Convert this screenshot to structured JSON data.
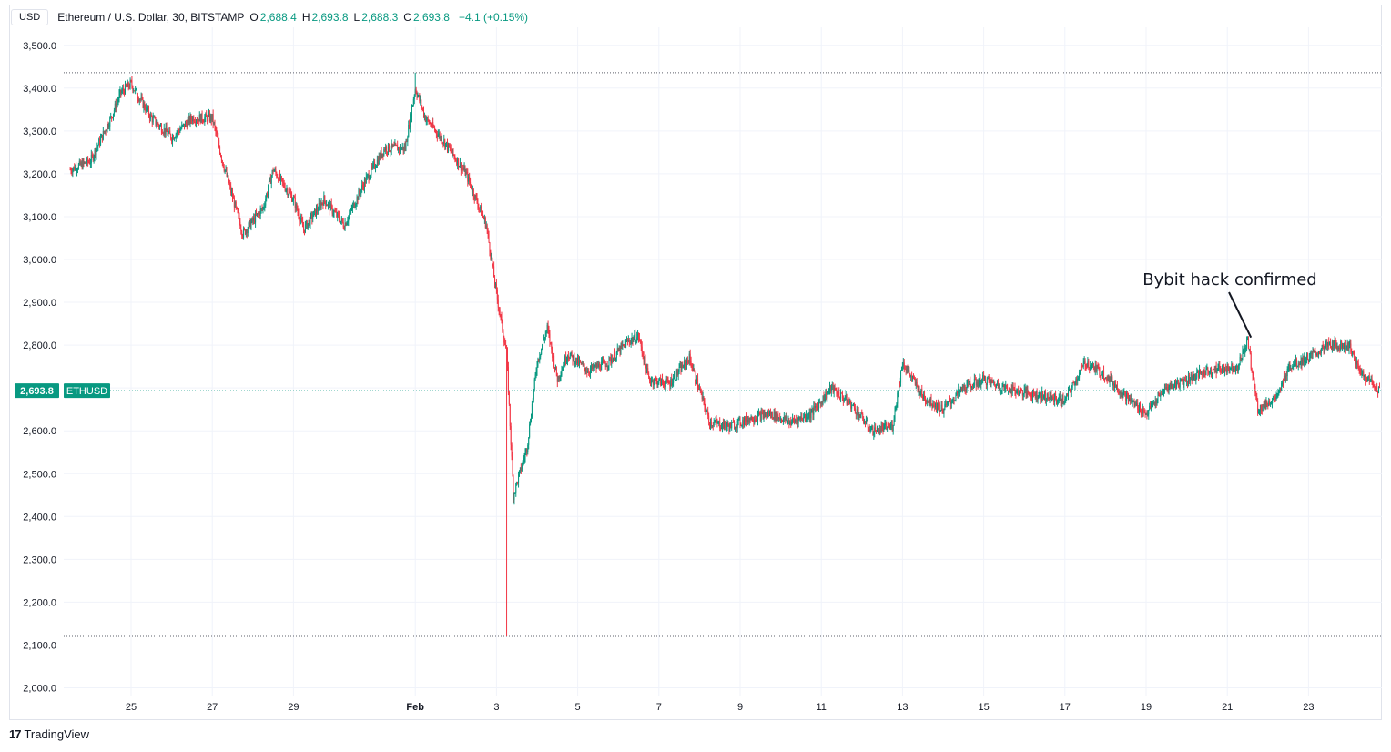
{
  "header": {
    "currency_button": "USD",
    "symbol": "Ethereum / U.S. Dollar, 30, BITSTAMP",
    "o_label": "O",
    "o_value": "2,688.4",
    "h_label": "H",
    "h_value": "2,693.8",
    "l_label": "L",
    "l_value": "2,688.3",
    "c_label": "C",
    "c_value": "2,693.8",
    "change": "+4.1 (+0.15%)"
  },
  "footer": {
    "brand_logo": "17",
    "brand_name": "TradingView"
  },
  "colors": {
    "up": "#089981",
    "down": "#f23645",
    "grid": "#f0f3fa",
    "axis_text": "#131722"
  },
  "chart_data": {
    "type": "candlestick",
    "title": "Ethereum / U.S. Dollar, 30, BITSTAMP",
    "grid": true,
    "y_axis": {
      "range": [
        1960,
        3560
      ],
      "ticks": [
        2000,
        2100,
        2200,
        2300,
        2400,
        2500,
        2600,
        2700,
        2800,
        2900,
        3000,
        3100,
        3200,
        3300,
        3400,
        3500
      ],
      "tick_labels": [
        "2,000.0",
        "2,100.0",
        "2,200.0",
        "2,300.0",
        "2,400.0",
        "2,500.0",
        "2,600.0",
        "2,700.0",
        "2,800.0",
        "2,900.0",
        "3,000.0",
        "3,100.0",
        "3,200.0",
        "3,300.0",
        "3,400.0",
        "3,500.0"
      ]
    },
    "x_axis": {
      "range_days": [
        "2025-01-23T12:00",
        "2025-02-24T18:00"
      ],
      "ticks": [
        {
          "date": "2025-01-25",
          "label": "25"
        },
        {
          "date": "2025-01-27",
          "label": "27"
        },
        {
          "date": "2025-01-29",
          "label": "29"
        },
        {
          "date": "2025-02-01",
          "label": "Feb"
        },
        {
          "date": "2025-02-03",
          "label": "3"
        },
        {
          "date": "2025-02-05",
          "label": "5"
        },
        {
          "date": "2025-02-07",
          "label": "7"
        },
        {
          "date": "2025-02-09",
          "label": "9"
        },
        {
          "date": "2025-02-11",
          "label": "11"
        },
        {
          "date": "2025-02-13",
          "label": "13"
        },
        {
          "date": "2025-02-15",
          "label": "15"
        },
        {
          "date": "2025-02-17",
          "label": "17"
        },
        {
          "date": "2025-02-19",
          "label": "19"
        },
        {
          "date": "2025-02-21",
          "label": "21"
        },
        {
          "date": "2025-02-23",
          "label": "23"
        }
      ]
    },
    "price_path": [
      [
        "2025-01-23T12:00",
        3210
      ],
      [
        "2025-01-24T00:00",
        3230
      ],
      [
        "2025-01-24T12:00",
        3330
      ],
      [
        "2025-01-24T18:00",
        3390
      ],
      [
        "2025-01-25T00:00",
        3410
      ],
      [
        "2025-01-25T12:00",
        3330
      ],
      [
        "2025-01-26T00:00",
        3285
      ],
      [
        "2025-01-26T12:00",
        3330
      ],
      [
        "2025-01-27T00:00",
        3330
      ],
      [
        "2025-01-27T06:00",
        3230
      ],
      [
        "2025-01-27T18:00",
        3060
      ],
      [
        "2025-01-28T06:00",
        3120
      ],
      [
        "2025-01-28T12:00",
        3210
      ],
      [
        "2025-01-29T00:00",
        3140
      ],
      [
        "2025-01-29T06:00",
        3070
      ],
      [
        "2025-01-29T18:00",
        3140
      ],
      [
        "2025-01-30T06:00",
        3080
      ],
      [
        "2025-01-30T18:00",
        3180
      ],
      [
        "2025-01-31T06:00",
        3260
      ],
      [
        "2025-01-31T18:00",
        3260
      ],
      [
        "2025-02-01T00:00",
        3400
      ],
      [
        "2025-02-01T06:00",
        3330
      ],
      [
        "2025-02-01T18:00",
        3270
      ],
      [
        "2025-02-02T06:00",
        3200
      ],
      [
        "2025-02-02T18:00",
        3080
      ],
      [
        "2025-02-03T00:00",
        2920
      ],
      [
        "2025-02-03T06:00",
        2780
      ],
      [
        "2025-02-03T10:00",
        2450
      ],
      [
        "2025-02-03T18:00",
        2560
      ],
      [
        "2025-02-04T00:00",
        2760
      ],
      [
        "2025-02-04T06:00",
        2840
      ],
      [
        "2025-02-04T12:00",
        2720
      ],
      [
        "2025-02-04T18:00",
        2780
      ],
      [
        "2025-02-05T06:00",
        2740
      ],
      [
        "2025-02-05T18:00",
        2760
      ],
      [
        "2025-02-06T06:00",
        2810
      ],
      [
        "2025-02-06T12:00",
        2820
      ],
      [
        "2025-02-06T18:00",
        2720
      ],
      [
        "2025-02-07T06:00",
        2710
      ],
      [
        "2025-02-07T18:00",
        2770
      ],
      [
        "2025-02-08T06:00",
        2620
      ],
      [
        "2025-02-08T18:00",
        2610
      ],
      [
        "2025-02-09T06:00",
        2630
      ],
      [
        "2025-02-09T18:00",
        2640
      ],
      [
        "2025-02-10T06:00",
        2620
      ],
      [
        "2025-02-10T18:00",
        2640
      ],
      [
        "2025-02-11T06:00",
        2700
      ],
      [
        "2025-02-11T18:00",
        2660
      ],
      [
        "2025-02-12T06:00",
        2600
      ],
      [
        "2025-02-12T18:00",
        2610
      ],
      [
        "2025-02-13T00:00",
        2760
      ],
      [
        "2025-02-13T12:00",
        2680
      ],
      [
        "2025-02-14T00:00",
        2650
      ],
      [
        "2025-02-14T12:00",
        2700
      ],
      [
        "2025-02-15T00:00",
        2720
      ],
      [
        "2025-02-15T12:00",
        2700
      ],
      [
        "2025-02-16T00:00",
        2690
      ],
      [
        "2025-02-16T12:00",
        2680
      ],
      [
        "2025-02-17T00:00",
        2670
      ],
      [
        "2025-02-17T12:00",
        2760
      ],
      [
        "2025-02-18T00:00",
        2730
      ],
      [
        "2025-02-18T12:00",
        2680
      ],
      [
        "2025-02-19T00:00",
        2640
      ],
      [
        "2025-02-19T12:00",
        2700
      ],
      [
        "2025-02-20T00:00",
        2720
      ],
      [
        "2025-02-20T12:00",
        2740
      ],
      [
        "2025-02-21T06:00",
        2750
      ],
      [
        "2025-02-21T12:00",
        2810
      ],
      [
        "2025-02-21T18:00",
        2650
      ],
      [
        "2025-02-22T06:00",
        2680
      ],
      [
        "2025-02-22T12:00",
        2750
      ],
      [
        "2025-02-23T00:00",
        2770
      ],
      [
        "2025-02-23T12:00",
        2800
      ],
      [
        "2025-02-24T00:00",
        2800
      ],
      [
        "2025-02-24T06:00",
        2740
      ],
      [
        "2025-02-24T18:00",
        2693.8
      ]
    ],
    "series_high": 3436,
    "series_low": 2120,
    "last_price": {
      "value": 2693.8,
      "label": "2,693.8",
      "tag": "ETHUSD"
    },
    "annotations": [
      {
        "text": "Bybit hack confirmed",
        "points_to": {
          "date": "2025-02-21T14:00",
          "value": 2818
        }
      }
    ]
  }
}
